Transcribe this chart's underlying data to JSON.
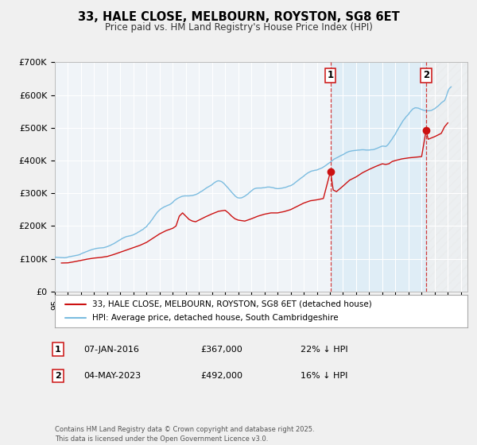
{
  "title": "33, HALE CLOSE, MELBOURN, ROYSTON, SG8 6ET",
  "subtitle": "Price paid vs. HM Land Registry's House Price Index (HPI)",
  "hpi_color": "#7bbce0",
  "price_color": "#cc1111",
  "background_color": "#f0f4f8",
  "grid_color": "#ffffff",
  "shade_color": "#d0e8f5",
  "hatch_color": "#d0e0ec",
  "ylim": [
    0,
    700000
  ],
  "yticks": [
    0,
    100000,
    200000,
    300000,
    400000,
    500000,
    600000,
    700000
  ],
  "ytick_labels": [
    "£0",
    "£100K",
    "£200K",
    "£300K",
    "£400K",
    "£500K",
    "£600K",
    "£700K"
  ],
  "xlim_start": 1995.0,
  "xlim_end": 2026.5,
  "marker1_date": 2016.04,
  "marker1_label": "1",
  "marker1_price": 367000,
  "marker1_text": "07-JAN-2016",
  "marker1_value_text": "£367,000",
  "marker1_hpi_text": "22% ↓ HPI",
  "marker2_date": 2023.34,
  "marker2_label": "2",
  "marker2_price": 492000,
  "marker2_text": "04-MAY-2023",
  "marker2_value_text": "£492,000",
  "marker2_hpi_text": "16% ↓ HPI",
  "legend_line1": "33, HALE CLOSE, MELBOURN, ROYSTON, SG8 6ET (detached house)",
  "legend_line2": "HPI: Average price, detached house, South Cambridgeshire",
  "footer": "Contains HM Land Registry data © Crown copyright and database right 2025.\nThis data is licensed under the Open Government Licence v3.0.",
  "hpi_data": [
    [
      1995.0,
      105000
    ],
    [
      1995.08,
      104500
    ],
    [
      1995.17,
      104200
    ],
    [
      1995.25,
      104000
    ],
    [
      1995.33,
      103800
    ],
    [
      1995.42,
      103600
    ],
    [
      1995.5,
      103500
    ],
    [
      1995.58,
      103300
    ],
    [
      1995.67,
      103200
    ],
    [
      1995.75,
      103000
    ],
    [
      1995.83,
      103500
    ],
    [
      1995.92,
      104000
    ],
    [
      1996.0,
      105000
    ],
    [
      1996.08,
      106000
    ],
    [
      1996.17,
      106500
    ],
    [
      1996.25,
      107000
    ],
    [
      1996.33,
      107800
    ],
    [
      1996.42,
      108400
    ],
    [
      1996.5,
      109000
    ],
    [
      1996.58,
      109800
    ],
    [
      1996.67,
      110400
    ],
    [
      1996.75,
      111000
    ],
    [
      1996.83,
      112000
    ],
    [
      1996.92,
      113000
    ],
    [
      1997.0,
      115000
    ],
    [
      1997.08,
      116500
    ],
    [
      1997.17,
      117800
    ],
    [
      1997.25,
      119000
    ],
    [
      1997.33,
      120500
    ],
    [
      1997.42,
      121800
    ],
    [
      1997.5,
      123000
    ],
    [
      1997.58,
      124500
    ],
    [
      1997.67,
      125800
    ],
    [
      1997.75,
      127000
    ],
    [
      1997.83,
      128000
    ],
    [
      1997.92,
      129000
    ],
    [
      1998.0,
      130000
    ],
    [
      1998.08,
      131000
    ],
    [
      1998.17,
      131500
    ],
    [
      1998.25,
      132000
    ],
    [
      1998.33,
      132500
    ],
    [
      1998.42,
      132800
    ],
    [
      1998.5,
      133000
    ],
    [
      1998.58,
      133200
    ],
    [
      1998.67,
      133600
    ],
    [
      1998.75,
      134000
    ],
    [
      1998.83,
      135000
    ],
    [
      1998.92,
      136000
    ],
    [
      1999.0,
      137000
    ],
    [
      1999.08,
      138500
    ],
    [
      1999.17,
      139800
    ],
    [
      1999.25,
      141000
    ],
    [
      1999.33,
      143000
    ],
    [
      1999.42,
      144500
    ],
    [
      1999.5,
      146000
    ],
    [
      1999.58,
      148000
    ],
    [
      1999.67,
      150000
    ],
    [
      1999.75,
      152000
    ],
    [
      1999.83,
      154500
    ],
    [
      1999.92,
      156500
    ],
    [
      2000.0,
      158000
    ],
    [
      2000.08,
      160500
    ],
    [
      2000.17,
      162500
    ],
    [
      2000.25,
      164000
    ],
    [
      2000.33,
      165500
    ],
    [
      2000.42,
      167000
    ],
    [
      2000.5,
      168000
    ],
    [
      2000.58,
      168500
    ],
    [
      2000.67,
      169500
    ],
    [
      2000.75,
      170000
    ],
    [
      2000.83,
      171000
    ],
    [
      2000.92,
      172000
    ],
    [
      2001.0,
      173000
    ],
    [
      2001.08,
      175000
    ],
    [
      2001.17,
      176500
    ],
    [
      2001.25,
      178000
    ],
    [
      2001.33,
      180500
    ],
    [
      2001.42,
      182500
    ],
    [
      2001.5,
      184000
    ],
    [
      2001.58,
      186500
    ],
    [
      2001.67,
      188500
    ],
    [
      2001.75,
      190000
    ],
    [
      2001.83,
      193500
    ],
    [
      2001.92,
      196000
    ],
    [
      2002.0,
      198000
    ],
    [
      2002.08,
      203000
    ],
    [
      2002.17,
      207000
    ],
    [
      2002.25,
      210000
    ],
    [
      2002.33,
      215000
    ],
    [
      2002.42,
      219500
    ],
    [
      2002.5,
      224000
    ],
    [
      2002.58,
      229000
    ],
    [
      2002.67,
      234000
    ],
    [
      2002.75,
      238000
    ],
    [
      2002.83,
      242500
    ],
    [
      2002.92,
      246000
    ],
    [
      2003.0,
      249000
    ],
    [
      2003.08,
      252000
    ],
    [
      2003.17,
      254000
    ],
    [
      2003.25,
      256000
    ],
    [
      2003.33,
      258000
    ],
    [
      2003.42,
      259500
    ],
    [
      2003.5,
      261000
    ],
    [
      2003.58,
      262500
    ],
    [
      2003.67,
      264000
    ],
    [
      2003.75,
      265000
    ],
    [
      2003.83,
      267000
    ],
    [
      2003.92,
      269500
    ],
    [
      2004.0,
      272000
    ],
    [
      2004.08,
      276000
    ],
    [
      2004.17,
      279000
    ],
    [
      2004.25,
      281000
    ],
    [
      2004.33,
      283500
    ],
    [
      2004.42,
      285500
    ],
    [
      2004.5,
      287000
    ],
    [
      2004.58,
      288500
    ],
    [
      2004.67,
      290000
    ],
    [
      2004.75,
      291000
    ],
    [
      2004.83,
      291500
    ],
    [
      2004.92,
      292000
    ],
    [
      2005.0,
      292000
    ],
    [
      2005.08,
      292000
    ],
    [
      2005.17,
      292000
    ],
    [
      2005.25,
      292000
    ],
    [
      2005.33,
      292500
    ],
    [
      2005.42,
      292800
    ],
    [
      2005.5,
      293000
    ],
    [
      2005.58,
      294000
    ],
    [
      2005.67,
      295000
    ],
    [
      2005.75,
      296000
    ],
    [
      2005.83,
      297500
    ],
    [
      2005.92,
      299000
    ],
    [
      2006.0,
      301000
    ],
    [
      2006.08,
      303500
    ],
    [
      2006.17,
      305500
    ],
    [
      2006.25,
      307000
    ],
    [
      2006.33,
      309500
    ],
    [
      2006.42,
      312000
    ],
    [
      2006.5,
      314000
    ],
    [
      2006.58,
      316500
    ],
    [
      2006.67,
      318500
    ],
    [
      2006.75,
      320000
    ],
    [
      2006.83,
      322000
    ],
    [
      2006.92,
      324000
    ],
    [
      2007.0,
      326000
    ],
    [
      2007.08,
      329500
    ],
    [
      2007.17,
      332000
    ],
    [
      2007.25,
      334000
    ],
    [
      2007.33,
      336000
    ],
    [
      2007.42,
      337500
    ],
    [
      2007.5,
      338000
    ],
    [
      2007.58,
      337500
    ],
    [
      2007.67,
      336500
    ],
    [
      2007.75,
      335000
    ],
    [
      2007.83,
      332500
    ],
    [
      2007.92,
      329500
    ],
    [
      2008.0,
      326000
    ],
    [
      2008.08,
      322000
    ],
    [
      2008.17,
      318500
    ],
    [
      2008.25,
      315000
    ],
    [
      2008.33,
      311000
    ],
    [
      2008.42,
      307000
    ],
    [
      2008.5,
      303000
    ],
    [
      2008.58,
      299500
    ],
    [
      2008.67,
      296000
    ],
    [
      2008.75,
      292000
    ],
    [
      2008.83,
      289500
    ],
    [
      2008.92,
      287000
    ],
    [
      2009.0,
      286000
    ],
    [
      2009.08,
      285500
    ],
    [
      2009.17,
      285800
    ],
    [
      2009.25,
      286000
    ],
    [
      2009.33,
      287500
    ],
    [
      2009.42,
      289500
    ],
    [
      2009.5,
      291000
    ],
    [
      2009.58,
      293500
    ],
    [
      2009.67,
      296000
    ],
    [
      2009.75,
      298000
    ],
    [
      2009.83,
      301500
    ],
    [
      2009.92,
      304500
    ],
    [
      2010.0,
      307000
    ],
    [
      2010.08,
      310000
    ],
    [
      2010.17,
      312500
    ],
    [
      2010.25,
      314000
    ],
    [
      2010.33,
      315000
    ],
    [
      2010.42,
      315800
    ],
    [
      2010.5,
      316000
    ],
    [
      2010.58,
      316000
    ],
    [
      2010.67,
      316000
    ],
    [
      2010.75,
      316000
    ],
    [
      2010.83,
      316500
    ],
    [
      2010.92,
      317000
    ],
    [
      2011.0,
      317000
    ],
    [
      2011.08,
      317800
    ],
    [
      2011.17,
      318500
    ],
    [
      2011.25,
      319000
    ],
    [
      2011.33,
      319000
    ],
    [
      2011.42,
      318800
    ],
    [
      2011.5,
      318000
    ],
    [
      2011.58,
      317500
    ],
    [
      2011.67,
      317000
    ],
    [
      2011.75,
      316000
    ],
    [
      2011.83,
      315000
    ],
    [
      2011.92,
      314500
    ],
    [
      2012.0,
      314000
    ],
    [
      2012.08,
      314200
    ],
    [
      2012.17,
      314600
    ],
    [
      2012.25,
      315000
    ],
    [
      2012.33,
      315600
    ],
    [
      2012.42,
      316300
    ],
    [
      2012.5,
      317000
    ],
    [
      2012.58,
      317800
    ],
    [
      2012.67,
      318800
    ],
    [
      2012.75,
      320000
    ],
    [
      2012.83,
      321500
    ],
    [
      2012.92,
      322500
    ],
    [
      2013.0,
      323000
    ],
    [
      2013.08,
      325000
    ],
    [
      2013.17,
      327500
    ],
    [
      2013.25,
      329000
    ],
    [
      2013.33,
      332000
    ],
    [
      2013.42,
      334800
    ],
    [
      2013.5,
      337000
    ],
    [
      2013.58,
      340000
    ],
    [
      2013.67,
      342800
    ],
    [
      2013.75,
      345000
    ],
    [
      2013.83,
      347500
    ],
    [
      2013.92,
      350000
    ],
    [
      2014.0,
      352000
    ],
    [
      2014.08,
      355500
    ],
    [
      2014.17,
      358000
    ],
    [
      2014.25,
      360000
    ],
    [
      2014.33,
      362500
    ],
    [
      2014.42,
      364500
    ],
    [
      2014.5,
      366000
    ],
    [
      2014.58,
      367500
    ],
    [
      2014.67,
      368500
    ],
    [
      2014.75,
      369000
    ],
    [
      2014.83,
      370000
    ],
    [
      2014.92,
      370500
    ],
    [
      2015.0,
      371000
    ],
    [
      2015.08,
      372500
    ],
    [
      2015.17,
      374000
    ],
    [
      2015.25,
      375000
    ],
    [
      2015.33,
      376500
    ],
    [
      2015.42,
      378000
    ],
    [
      2015.5,
      380000
    ],
    [
      2015.58,
      382000
    ],
    [
      2015.67,
      384500
    ],
    [
      2015.75,
      387000
    ],
    [
      2015.83,
      389500
    ],
    [
      2015.92,
      392000
    ],
    [
      2016.0,
      394000
    ],
    [
      2016.08,
      397000
    ],
    [
      2016.17,
      399500
    ],
    [
      2016.25,
      402000
    ],
    [
      2016.33,
      404500
    ],
    [
      2016.42,
      406500
    ],
    [
      2016.5,
      408000
    ],
    [
      2016.58,
      409500
    ],
    [
      2016.67,
      411500
    ],
    [
      2016.75,
      413000
    ],
    [
      2016.83,
      415000
    ],
    [
      2016.92,
      416500
    ],
    [
      2017.0,
      418000
    ],
    [
      2017.08,
      420000
    ],
    [
      2017.17,
      422000
    ],
    [
      2017.25,
      424000
    ],
    [
      2017.33,
      425500
    ],
    [
      2017.42,
      427000
    ],
    [
      2017.5,
      428000
    ],
    [
      2017.58,
      428500
    ],
    [
      2017.67,
      429500
    ],
    [
      2017.75,
      430000
    ],
    [
      2017.83,
      430500
    ],
    [
      2017.92,
      430800
    ],
    [
      2018.0,
      431000
    ],
    [
      2018.08,
      431500
    ],
    [
      2018.17,
      432000
    ],
    [
      2018.25,
      432000
    ],
    [
      2018.33,
      432500
    ],
    [
      2018.42,
      432800
    ],
    [
      2018.5,
      433000
    ],
    [
      2018.58,
      432800
    ],
    [
      2018.67,
      432500
    ],
    [
      2018.75,
      432000
    ],
    [
      2018.83,
      432000
    ],
    [
      2018.92,
      432000
    ],
    [
      2019.0,
      432000
    ],
    [
      2019.08,
      432500
    ],
    [
      2019.17,
      433000
    ],
    [
      2019.25,
      433000
    ],
    [
      2019.33,
      433500
    ],
    [
      2019.42,
      434500
    ],
    [
      2019.5,
      436000
    ],
    [
      2019.58,
      437000
    ],
    [
      2019.67,
      438500
    ],
    [
      2019.75,
      440000
    ],
    [
      2019.83,
      441500
    ],
    [
      2019.92,
      443000
    ],
    [
      2020.0,
      444000
    ],
    [
      2020.08,
      444000
    ],
    [
      2020.17,
      443500
    ],
    [
      2020.25,
      443000
    ],
    [
      2020.33,
      444500
    ],
    [
      2020.42,
      448000
    ],
    [
      2020.5,
      452000
    ],
    [
      2020.58,
      457000
    ],
    [
      2020.67,
      461500
    ],
    [
      2020.75,
      466000
    ],
    [
      2020.83,
      471500
    ],
    [
      2020.92,
      476500
    ],
    [
      2021.0,
      481000
    ],
    [
      2021.08,
      488000
    ],
    [
      2021.17,
      494000
    ],
    [
      2021.25,
      499000
    ],
    [
      2021.33,
      505000
    ],
    [
      2021.42,
      511000
    ],
    [
      2021.5,
      516000
    ],
    [
      2021.58,
      521500
    ],
    [
      2021.67,
      526000
    ],
    [
      2021.75,
      530000
    ],
    [
      2021.83,
      534500
    ],
    [
      2021.92,
      538000
    ],
    [
      2022.0,
      541000
    ],
    [
      2022.08,
      546500
    ],
    [
      2022.17,
      550500
    ],
    [
      2022.25,
      554000
    ],
    [
      2022.33,
      557500
    ],
    [
      2022.42,
      559500
    ],
    [
      2022.5,
      561000
    ],
    [
      2022.58,
      561000
    ],
    [
      2022.67,
      560500
    ],
    [
      2022.75,
      560000
    ],
    [
      2022.83,
      558500
    ],
    [
      2022.92,
      557000
    ],
    [
      2023.0,
      556000
    ],
    [
      2023.08,
      554500
    ],
    [
      2023.17,
      553500
    ],
    [
      2023.25,
      553000
    ],
    [
      2023.33,
      552500
    ],
    [
      2023.42,
      552000
    ],
    [
      2023.5,
      552000
    ],
    [
      2023.58,
      552000
    ],
    [
      2023.67,
      552500
    ],
    [
      2023.75,
      553000
    ],
    [
      2023.83,
      555000
    ],
    [
      2023.92,
      557000
    ],
    [
      2024.0,
      558000
    ],
    [
      2024.08,
      561000
    ],
    [
      2024.17,
      564000
    ],
    [
      2024.25,
      566000
    ],
    [
      2024.33,
      569000
    ],
    [
      2024.42,
      572500
    ],
    [
      2024.5,
      576000
    ],
    [
      2024.58,
      578500
    ],
    [
      2024.67,
      581000
    ],
    [
      2024.75,
      583000
    ],
    [
      2024.83,
      590000
    ],
    [
      2024.92,
      600000
    ],
    [
      2025.0,
      610000
    ],
    [
      2025.08,
      618000
    ],
    [
      2025.17,
      622000
    ],
    [
      2025.25,
      625000
    ]
  ],
  "price_data": [
    [
      1995.5,
      87000
    ],
    [
      1996.0,
      87500
    ],
    [
      1996.5,
      91000
    ],
    [
      1997.0,
      95000
    ],
    [
      1997.5,
      99000
    ],
    [
      1998.0,
      102000
    ],
    [
      1998.5,
      104000
    ],
    [
      1999.0,
      107000
    ],
    [
      1999.5,
      113000
    ],
    [
      2000.0,
      120000
    ],
    [
      2000.5,
      127000
    ],
    [
      2001.0,
      134000
    ],
    [
      2001.5,
      141000
    ],
    [
      2002.0,
      150000
    ],
    [
      2002.5,
      163000
    ],
    [
      2003.0,
      176000
    ],
    [
      2003.5,
      186000
    ],
    [
      2004.0,
      193000
    ],
    [
      2004.25,
      200000
    ],
    [
      2004.5,
      230000
    ],
    [
      2004.75,
      240000
    ],
    [
      2005.0,
      230000
    ],
    [
      2005.25,
      220000
    ],
    [
      2005.5,
      215000
    ],
    [
      2005.75,
      213000
    ],
    [
      2006.0,
      218000
    ],
    [
      2006.5,
      228000
    ],
    [
      2007.0,
      237000
    ],
    [
      2007.5,
      245000
    ],
    [
      2008.0,
      248000
    ],
    [
      2008.25,
      240000
    ],
    [
      2008.5,
      230000
    ],
    [
      2008.75,
      222000
    ],
    [
      2009.0,
      218000
    ],
    [
      2009.5,
      215000
    ],
    [
      2010.0,
      222000
    ],
    [
      2010.5,
      230000
    ],
    [
      2011.0,
      236000
    ],
    [
      2011.5,
      240000
    ],
    [
      2012.0,
      240000
    ],
    [
      2012.5,
      244000
    ],
    [
      2013.0,
      250000
    ],
    [
      2013.5,
      260000
    ],
    [
      2014.0,
      270000
    ],
    [
      2014.5,
      277000
    ],
    [
      2015.0,
      280000
    ],
    [
      2015.5,
      284000
    ],
    [
      2016.04,
      367000
    ],
    [
      2016.25,
      310000
    ],
    [
      2016.5,
      305000
    ],
    [
      2017.0,
      322000
    ],
    [
      2017.5,
      340000
    ],
    [
      2018.0,
      350000
    ],
    [
      2018.5,
      363000
    ],
    [
      2019.0,
      373000
    ],
    [
      2019.5,
      382000
    ],
    [
      2020.0,
      390000
    ],
    [
      2020.25,
      388000
    ],
    [
      2020.5,
      390000
    ],
    [
      2020.75,
      397000
    ],
    [
      2021.0,
      400000
    ],
    [
      2021.5,
      405000
    ],
    [
      2022.0,
      408000
    ],
    [
      2022.5,
      410000
    ],
    [
      2023.0,
      412000
    ],
    [
      2023.34,
      492000
    ],
    [
      2023.5,
      465000
    ],
    [
      2024.0,
      473000
    ],
    [
      2024.5,
      483000
    ],
    [
      2024.75,
      503000
    ],
    [
      2025.0,
      515000
    ]
  ]
}
